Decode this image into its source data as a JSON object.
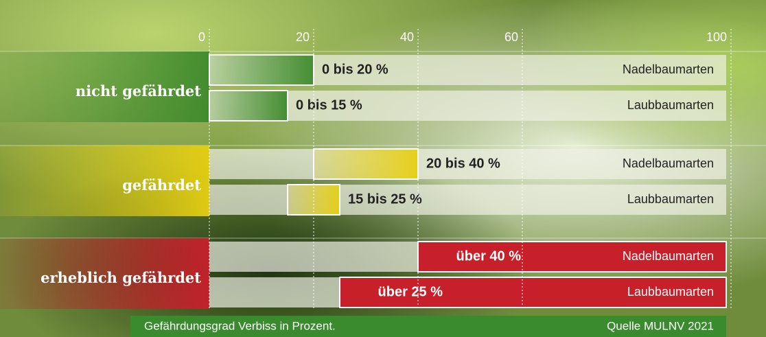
{
  "chart_data": {
    "type": "range-bar",
    "xlim": [
      0,
      100
    ],
    "xticks": [
      0,
      20,
      40,
      60,
      100
    ],
    "grid": true,
    "groups": [
      {
        "name": "nicht gefährdet",
        "color": "#3e8a2c",
        "rows": [
          {
            "name": "Nadelbaumarten",
            "start": 0,
            "end": 20,
            "value_label": "0 bis 20 %"
          },
          {
            "name": "Laubbaumarten",
            "start": 0,
            "end": 15,
            "value_label": "0 bis 15 %"
          }
        ]
      },
      {
        "name": "gefährdet",
        "color": "#e6cf12",
        "rows": [
          {
            "name": "Nadelbaumarten",
            "start": 20,
            "end": 40,
            "value_label": "20 bis 40 %"
          },
          {
            "name": "Laubbaumarten",
            "start": 15,
            "end": 25,
            "value_label": "15 bis 25 %"
          }
        ]
      },
      {
        "name": "erheblich gefährdet",
        "color": "#c8202a",
        "rows": [
          {
            "name": "Nadelbaumarten",
            "start": 40,
            "end": 100,
            "value_label": "über 40 %"
          },
          {
            "name": "Laubbaumarten",
            "start": 25,
            "end": 100,
            "value_label": "über 25 %"
          }
        ]
      }
    ],
    "footnote": "Gefährdungsgrad Verbiss in Prozent.",
    "source": "Quelle MULNV 2021"
  }
}
